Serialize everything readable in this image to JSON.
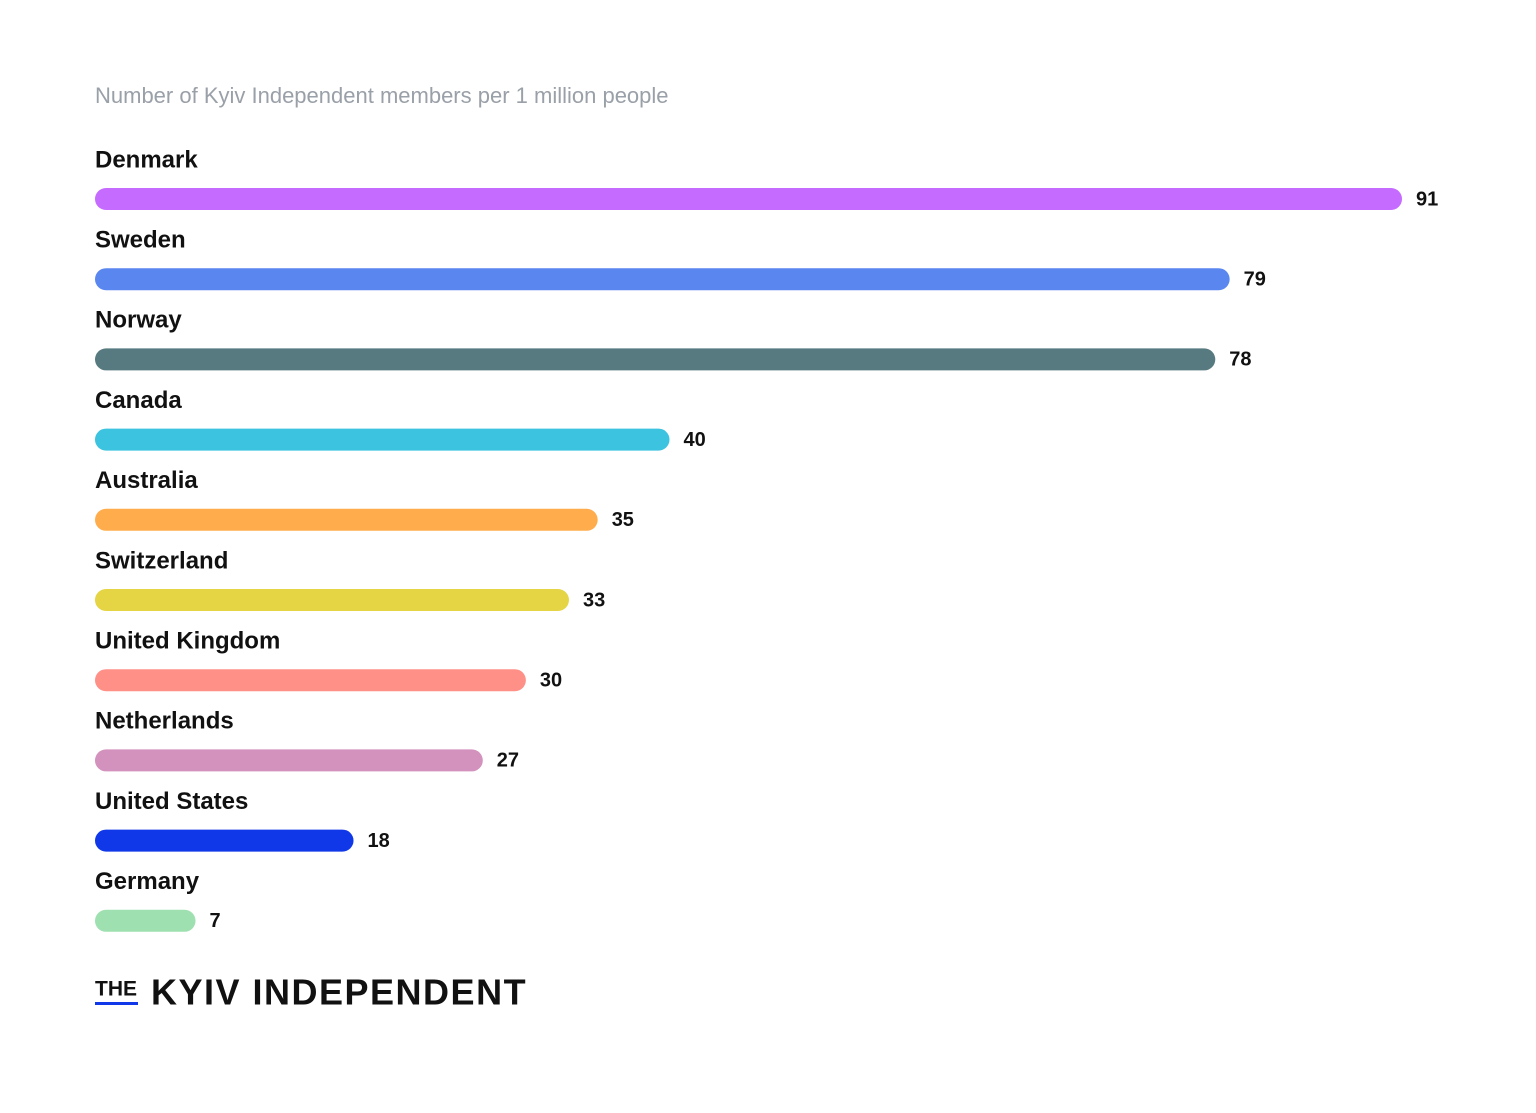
{
  "chart_data": {
    "type": "bar",
    "orientation": "horizontal",
    "title": "Number of Kyiv Independent members per 1 million people",
    "categories": [
      "Denmark",
      "Sweden",
      "Norway",
      "Canada",
      "Australia",
      "Switzerland",
      "United Kingdom",
      "Netherlands",
      "United States",
      "Germany"
    ],
    "values": [
      91,
      79,
      78,
      40,
      35,
      33,
      30,
      27,
      18,
      7
    ],
    "colors": [
      "#c56bff",
      "#5a86f0",
      "#567a80",
      "#3cc3df",
      "#ffad4c",
      "#e5d444",
      "#ff9088",
      "#d391bd",
      "#1038e8",
      "#9ee0b0"
    ],
    "grid": false
  },
  "logo": {
    "prefix": "THE",
    "name": "KYIV INDEPENDENT"
  }
}
